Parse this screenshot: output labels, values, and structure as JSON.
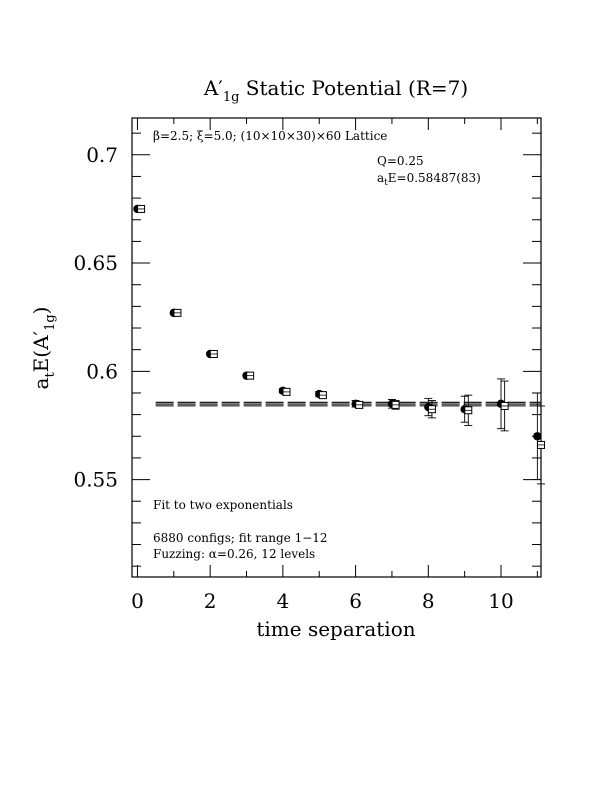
{
  "chart_data": {
    "type": "scatter",
    "title_parts": {
      "a": "A",
      "prime": "′",
      "sub": "1g",
      "rest": " Static Potential (R=7)"
    },
    "xlabel": "time separation",
    "ylabel_parts": {
      "a": "a",
      "t": "t",
      "mid": "E(A",
      "prime": "′",
      "sub": "1g",
      "end": ")"
    },
    "xlim": [
      -0.15,
      11.1
    ],
    "ylim": [
      0.505,
      0.717
    ],
    "x_ticks": [
      0,
      2,
      4,
      6,
      8,
      10
    ],
    "x_tick_labels": [
      "0",
      "2",
      "4",
      "6",
      "8",
      "10"
    ],
    "y_ticks": [
      0.55,
      0.6,
      0.65,
      0.7
    ],
    "y_tick_labels": [
      "0.55",
      "0.6",
      "0.65",
      "0.7"
    ],
    "annotations": {
      "lattice": "β=2.5; ξ=5.0; (10×10×30)×60 Lattice",
      "q": "Q=0.25",
      "energy_prefix": "a",
      "energy_sub": "t",
      "energy_rest": "E=0.58487(83)",
      "fit": "Fit to two exponentials",
      "configs": "6880 configs; fit range 1−12",
      "fuzzing": "Fuzzing: α=0.26, 12 levels"
    },
    "series": [
      {
        "marker": "filled-circle",
        "x": [
          0,
          1,
          2,
          3,
          4,
          5,
          6,
          7,
          8,
          9,
          10,
          11
        ],
        "y": [
          0.675,
          0.627,
          0.608,
          0.598,
          0.591,
          0.5895,
          0.585,
          0.585,
          0.5835,
          0.5825,
          0.585,
          0.57
        ],
        "err": [
          0.0008,
          0.0008,
          0.0009,
          0.0009,
          0.001,
          0.0012,
          0.0015,
          0.002,
          0.004,
          0.006,
          0.0115,
          0.02
        ]
      },
      {
        "marker": "open-square",
        "x": [
          0.1,
          1.1,
          2.1,
          3.1,
          4.1,
          5.1,
          6.1,
          7.1,
          8.1,
          9.1,
          10.1,
          11.1
        ],
        "y": [
          0.675,
          0.627,
          0.608,
          0.598,
          0.5905,
          0.589,
          0.5845,
          0.5845,
          0.5825,
          0.582,
          0.584,
          0.566
        ],
        "err": [
          0.0008,
          0.0008,
          0.0009,
          0.0009,
          0.001,
          0.0012,
          0.0015,
          0.002,
          0.004,
          0.007,
          0.0115,
          0.018
        ]
      }
    ],
    "fit_lines": {
      "x_range": [
        0.5,
        11.1
      ],
      "central": 0.58487,
      "error": 0.00083
    },
    "grid": false
  }
}
